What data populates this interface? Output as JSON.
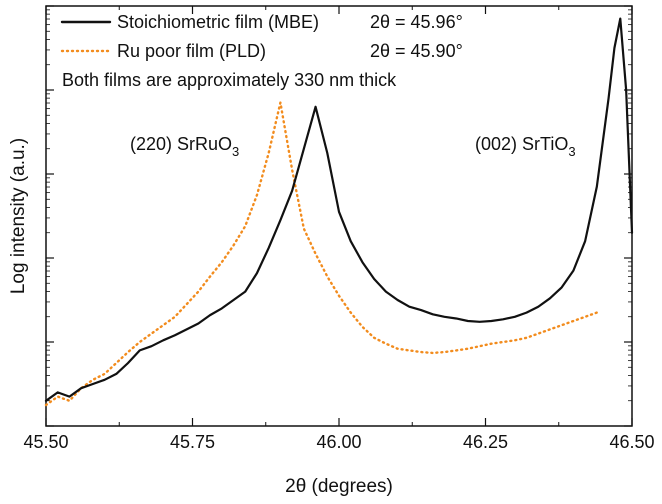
{
  "chart_data": {
    "type": "line",
    "xlabel": "2θ (degrees)",
    "ylabel": "Log intensity (a.u.)",
    "xlim": [
      45.5,
      46.5
    ],
    "ylim_log10": [
      0.0,
      5.0
    ],
    "xscale": "linear",
    "yscale": "log",
    "grid": false,
    "legend_position": "top-left",
    "xticks": [
      45.5,
      45.75,
      46.0,
      46.25,
      46.5
    ],
    "xtick_labels": [
      "45.50",
      "45.75",
      "46.00",
      "46.25",
      "46.50"
    ],
    "series": [
      {
        "name": "Stoichiometric film (MBE)",
        "annotation": "2θ = 45.96°",
        "color": "#111111",
        "style": "solid",
        "x": [
          45.5,
          45.52,
          45.54,
          45.56,
          45.58,
          45.6,
          45.62,
          45.64,
          45.66,
          45.68,
          45.7,
          45.72,
          45.74,
          45.76,
          45.78,
          45.8,
          45.82,
          45.84,
          45.86,
          45.88,
          45.9,
          45.92,
          45.94,
          45.96,
          45.98,
          46.0,
          46.02,
          46.04,
          46.06,
          46.08,
          46.1,
          46.12,
          46.14,
          46.16,
          46.18,
          46.2,
          46.22,
          46.24,
          46.26,
          46.28,
          46.3,
          46.32,
          46.34,
          46.36,
          46.38,
          46.4,
          46.42,
          46.44,
          46.46,
          46.47,
          46.48,
          46.49,
          46.5
        ],
        "y_log10": [
          0.3,
          0.4,
          0.35,
          0.45,
          0.5,
          0.55,
          0.62,
          0.75,
          0.9,
          0.95,
          1.02,
          1.08,
          1.15,
          1.22,
          1.32,
          1.4,
          1.5,
          1.6,
          1.82,
          2.12,
          2.45,
          2.8,
          3.3,
          3.8,
          3.25,
          2.55,
          2.2,
          1.95,
          1.75,
          1.6,
          1.5,
          1.42,
          1.38,
          1.33,
          1.3,
          1.28,
          1.25,
          1.24,
          1.25,
          1.27,
          1.3,
          1.35,
          1.42,
          1.52,
          1.65,
          1.85,
          2.2,
          2.85,
          3.9,
          4.5,
          4.85,
          4.0,
          2.3
        ]
      },
      {
        "name": "Ru poor film (PLD)",
        "annotation": "2θ = 45.90°",
        "color": "#f28c1e",
        "style": "dotted",
        "x": [
          45.5,
          45.52,
          45.54,
          45.56,
          45.58,
          45.6,
          45.62,
          45.64,
          45.66,
          45.68,
          45.7,
          45.72,
          45.74,
          45.76,
          45.78,
          45.8,
          45.82,
          45.84,
          45.86,
          45.88,
          45.9,
          45.92,
          45.94,
          45.96,
          45.98,
          46.0,
          46.02,
          46.04,
          46.06,
          46.08,
          46.1,
          46.12,
          46.14,
          46.16,
          46.18,
          46.2,
          46.22,
          46.24,
          46.26,
          46.28,
          46.3,
          46.32,
          46.34,
          46.36,
          46.38,
          46.4,
          46.42,
          46.44
        ],
        "y_log10": [
          0.25,
          0.35,
          0.3,
          0.45,
          0.55,
          0.62,
          0.75,
          0.88,
          1.0,
          1.1,
          1.2,
          1.3,
          1.45,
          1.6,
          1.78,
          1.95,
          2.15,
          2.38,
          2.75,
          3.25,
          3.85,
          3.05,
          2.35,
          2.05,
          1.78,
          1.55,
          1.35,
          1.18,
          1.05,
          0.98,
          0.92,
          0.9,
          0.88,
          0.87,
          0.88,
          0.9,
          0.92,
          0.95,
          0.98,
          1.0,
          1.02,
          1.05,
          1.1,
          1.15,
          1.2,
          1.25,
          1.3,
          1.35
        ]
      }
    ],
    "legend_note": "Both films are approximately 330 nm thick",
    "annotations": [
      {
        "main": "(220) SrRuO",
        "sub": "3"
      },
      {
        "main": "(002) SrTiO",
        "sub": "3"
      }
    ]
  }
}
